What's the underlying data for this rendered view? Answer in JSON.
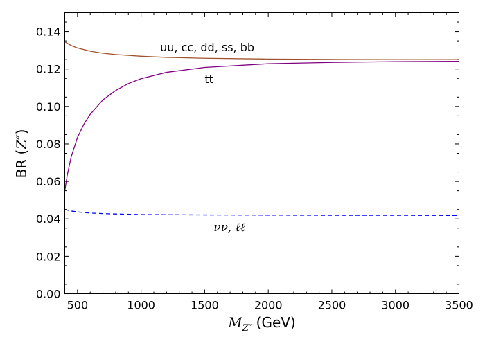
{
  "chart_data": {
    "type": "line",
    "title": "",
    "xlabel": {
      "math_main": "M",
      "math_sub": "Z″",
      "unit": "(GeV)"
    },
    "ylabel": {
      "prefix": "BR (",
      "math": "Z″",
      "suffix": ")"
    },
    "xlim": [
      400,
      3500
    ],
    "ylim": [
      0,
      0.15
    ],
    "xticks": [
      500,
      1000,
      1500,
      2000,
      2500,
      3000,
      3500
    ],
    "yticks": [
      0.0,
      0.02,
      0.04,
      0.06,
      0.08,
      0.1,
      0.12,
      0.14
    ],
    "ytick_labels": [
      "0.00",
      "0.02",
      "0.04",
      "0.06",
      "0.08",
      "0.10",
      "0.12",
      "0.14"
    ],
    "grid": false,
    "series": [
      {
        "name": "uu, cc, dd, ss, bb",
        "color": "#a0522d",
        "style": "solid",
        "x": [
          400,
          450,
          500,
          600,
          700,
          800,
          1000,
          1200,
          1500,
          2000,
          2500,
          3000,
          3500
        ],
        "y": [
          0.1345,
          0.1325,
          0.1312,
          0.1295,
          0.1284,
          0.1277,
          0.1268,
          0.1262,
          0.1257,
          0.1253,
          0.1251,
          0.125,
          0.125
        ]
      },
      {
        "name": "tt",
        "color": "#800080",
        "style": "solid",
        "x": [
          400,
          420,
          450,
          500,
          550,
          600,
          700,
          800,
          900,
          1000,
          1200,
          1500,
          2000,
          2500,
          3000,
          3500
        ],
        "y": [
          0.055,
          0.0635,
          0.073,
          0.0835,
          0.0905,
          0.0958,
          0.1035,
          0.1085,
          0.1122,
          0.1148,
          0.1182,
          0.1208,
          0.1228,
          0.1235,
          0.1239,
          0.1241
        ]
      },
      {
        "name": "νν, ℓℓ",
        "color": "#0000ff",
        "style": "dashed",
        "x": [
          400,
          450,
          500,
          600,
          700,
          800,
          1000,
          1500,
          2000,
          2500,
          3000,
          3500
        ],
        "y": [
          0.045,
          0.0442,
          0.0437,
          0.0431,
          0.0428,
          0.0426,
          0.0423,
          0.0421,
          0.042,
          0.0419,
          0.0419,
          0.0418
        ]
      }
    ],
    "annotations": [
      {
        "text": "uu, cc, dd, ss, bb",
        "x": 1150,
        "y": 0.1295,
        "math": false
      },
      {
        "text": "tt",
        "x": 1500,
        "y": 0.1125,
        "math": false
      },
      {
        "text": "νν, ℓℓ",
        "x": 1570,
        "y": 0.0335,
        "math": true
      }
    ]
  }
}
